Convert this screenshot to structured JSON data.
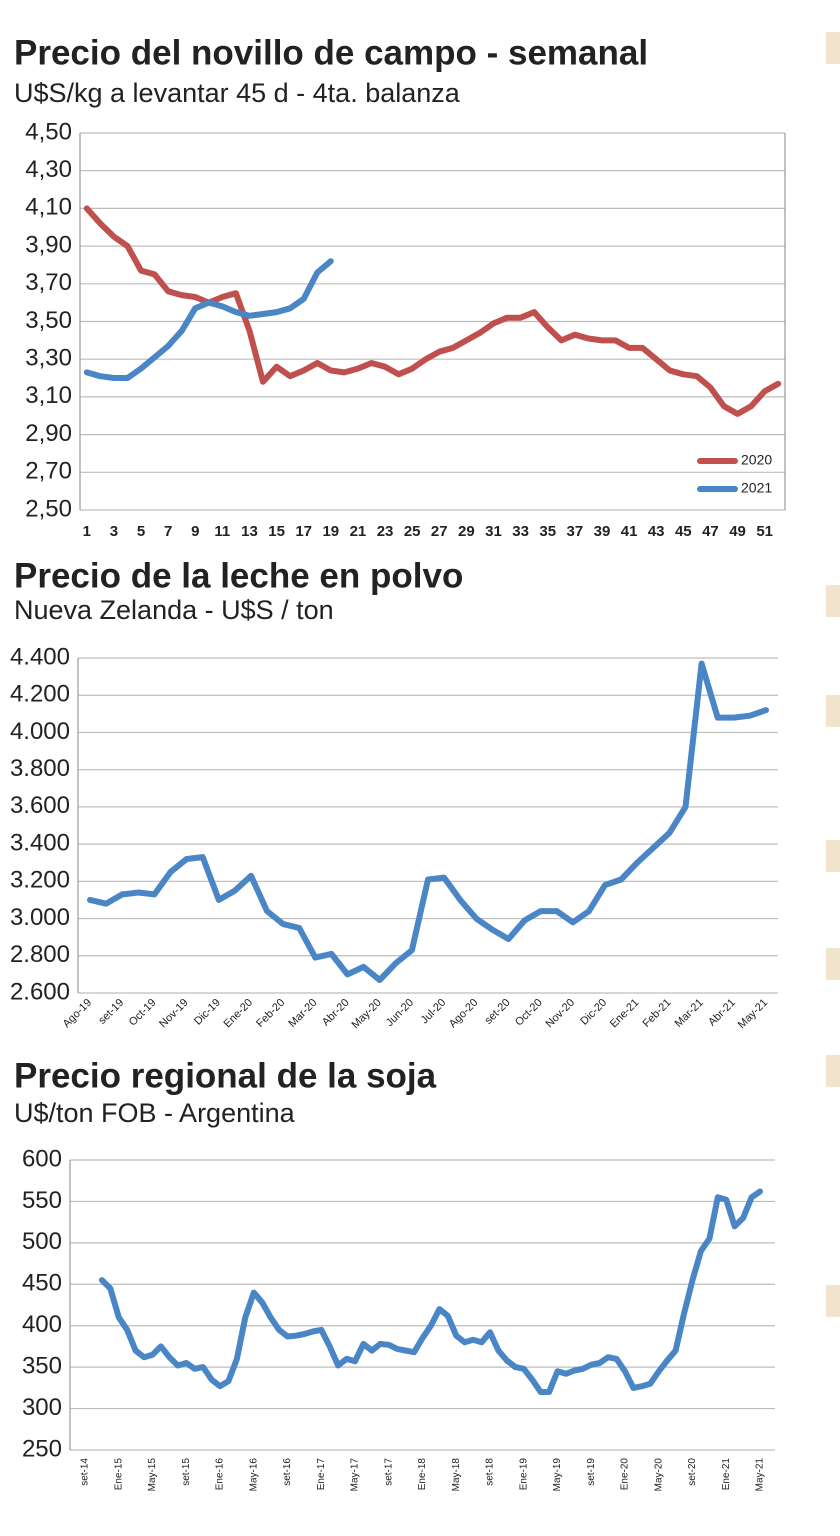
{
  "chart_data": [
    {
      "type": "line",
      "title": "Precio del novillo de campo - semanal",
      "subtitle": "U$S/kg a levantar 45 d - 4ta. balanza",
      "x": [
        1,
        2,
        3,
        4,
        5,
        6,
        7,
        8,
        9,
        10,
        11,
        12,
        13,
        14,
        15,
        16,
        17,
        18,
        19,
        20,
        21,
        22,
        23,
        24,
        25,
        26,
        27,
        28,
        29,
        30,
        31,
        32,
        33,
        34,
        35,
        36,
        37,
        38,
        39,
        40,
        41,
        42,
        43,
        44,
        45,
        46,
        47,
        48,
        49,
        50,
        51,
        52
      ],
      "xlim": [
        0.5,
        52.5
      ],
      "xticks": [
        1,
        3,
        5,
        7,
        9,
        11,
        13,
        15,
        17,
        19,
        21,
        23,
        25,
        27,
        29,
        31,
        33,
        35,
        37,
        39,
        41,
        43,
        45,
        47,
        49,
        51
      ],
      "ylim": [
        2.5,
        4.5
      ],
      "yticks": [
        {
          "value": 2.5,
          "label": "2,50"
        },
        {
          "value": 2.7,
          "label": "2,70"
        },
        {
          "value": 2.9,
          "label": "2,90"
        },
        {
          "value": 3.1,
          "label": "3,10"
        },
        {
          "value": 3.3,
          "label": "3,30"
        },
        {
          "value": 3.5,
          "label": "3,50"
        },
        {
          "value": 3.7,
          "label": "3,70"
        },
        {
          "value": 3.9,
          "label": "3,90"
        },
        {
          "value": 4.1,
          "label": "4,10"
        },
        {
          "value": 4.3,
          "label": "4,30"
        },
        {
          "value": 4.5,
          "label": "4,50"
        }
      ],
      "grid": true,
      "legend": "lower right",
      "series": [
        {
          "name": "2020",
          "color": "#c0504d",
          "values": [
            4.1,
            4.02,
            3.95,
            3.9,
            3.77,
            3.75,
            3.66,
            3.64,
            3.63,
            3.6,
            3.63,
            3.65,
            3.45,
            3.18,
            3.26,
            3.21,
            3.24,
            3.28,
            3.24,
            3.23,
            3.25,
            3.28,
            3.26,
            3.22,
            3.25,
            3.3,
            3.34,
            3.36,
            3.4,
            3.44,
            3.49,
            3.52,
            3.52,
            3.55,
            3.47,
            3.4,
            3.43,
            3.41,
            3.4,
            3.4,
            3.36,
            3.36,
            3.3,
            3.24,
            3.22,
            3.21,
            3.15,
            3.05,
            3.01,
            3.05,
            3.13,
            3.17
          ]
        },
        {
          "name": "2021",
          "color": "#4a86c5",
          "values": [
            3.23,
            3.21,
            3.2,
            3.2,
            3.25,
            3.31,
            3.37,
            3.45,
            3.57,
            3.6,
            3.58,
            3.55,
            3.53,
            3.54,
            3.55,
            3.57,
            3.62,
            3.76,
            3.82,
            null,
            null,
            null,
            null,
            null,
            null,
            null,
            null,
            null,
            null,
            null,
            null,
            null,
            null,
            null,
            null,
            null,
            null,
            null,
            null,
            null,
            null,
            null,
            null,
            null,
            null,
            null,
            null,
            null,
            null,
            null,
            null,
            null
          ]
        }
      ]
    },
    {
      "type": "line",
      "title": "Precio de la leche en polvo",
      "subtitle": "Nueva Zelanda - U$S / ton",
      "categories": [
        "Ago-19",
        null,
        "set-19",
        null,
        "Oct-19",
        null,
        "Nov-19",
        null,
        "Dic-19",
        null,
        "Ene-20",
        null,
        "Feb-20",
        null,
        "Mar-20",
        null,
        "Abr-20",
        null,
        "May-20",
        null,
        "Jun-20",
        null,
        "Jul-20",
        null,
        "Ago-20",
        null,
        "set-20",
        null,
        "Oct-20",
        null,
        "Nov-20",
        null,
        "Dic-20",
        null,
        "Ene-21",
        null,
        "Feb-21",
        null,
        "Mar-21",
        null,
        "Abr-21",
        null,
        "May-21"
      ],
      "values": [
        3100,
        3080,
        3130,
        3140,
        3130,
        3250,
        3320,
        3330,
        3100,
        3150,
        3230,
        3040,
        2970,
        2950,
        2790,
        2810,
        2700,
        2740,
        2670,
        2760,
        2830,
        3210,
        3220,
        3100,
        3000,
        2940,
        2890,
        2990,
        3040,
        3040,
        2980,
        3040,
        3180,
        3210,
        3300,
        3380,
        3460,
        3600,
        4370,
        4080,
        4080,
        4090,
        4120
      ],
      "color": "#4a86c5",
      "ylim": [
        2600,
        4400
      ],
      "yticks": [
        {
          "value": 2600,
          "label": "2.600"
        },
        {
          "value": 2800,
          "label": "2.800"
        },
        {
          "value": 3000,
          "label": "3.000"
        },
        {
          "value": 3200,
          "label": "3.200"
        },
        {
          "value": 3400,
          "label": "3.400"
        },
        {
          "value": 3600,
          "label": "3.600"
        },
        {
          "value": 3800,
          "label": "3.800"
        },
        {
          "value": 4000,
          "label": "4.000"
        },
        {
          "value": 4200,
          "label": "4.200"
        },
        {
          "value": 4400,
          "label": "4.400"
        }
      ],
      "grid": true
    },
    {
      "type": "line",
      "title": "Precio regional de la soja",
      "subtitle": "U$/ton FOB - Argentina",
      "categories": [
        "set-14",
        null,
        null,
        null,
        "Ene-15",
        null,
        null,
        null,
        "May-15",
        null,
        null,
        null,
        "set-15",
        null,
        null,
        null,
        "Ene-16",
        null,
        null,
        null,
        "May-16",
        null,
        null,
        null,
        "set-16",
        null,
        null,
        null,
        "Ene-17",
        null,
        null,
        null,
        "May-17",
        null,
        null,
        null,
        "set-17",
        null,
        null,
        null,
        "Ene-18",
        null,
        null,
        null,
        "May-18",
        null,
        null,
        null,
        "set-18",
        null,
        null,
        null,
        "Ene-19",
        null,
        null,
        null,
        "May-19",
        null,
        null,
        null,
        "set-19",
        null,
        null,
        null,
        "Ene-20",
        null,
        null,
        null,
        "May-20",
        null,
        null,
        null,
        "set-20",
        null,
        null,
        null,
        "Ene-21",
        null,
        null,
        null,
        "May-21"
      ],
      "values": [
        null,
        null,
        455,
        445,
        410,
        395,
        370,
        362,
        365,
        375,
        362,
        352,
        355,
        348,
        350,
        335,
        327,
        333,
        360,
        410,
        440,
        428,
        410,
        395,
        387,
        388,
        390,
        393,
        395,
        375,
        352,
        360,
        357,
        378,
        370,
        378,
        377,
        372,
        370,
        368,
        385,
        400,
        420,
        412,
        388,
        380,
        383,
        380,
        392,
        370,
        358,
        350,
        348,
        335,
        320,
        320,
        345,
        342,
        346,
        348,
        353,
        355,
        362,
        360,
        345,
        325,
        327,
        330,
        345,
        358,
        370,
        415,
        455,
        490,
        505,
        555,
        552,
        520,
        530,
        555,
        562
      ],
      "color": "#4a86c5",
      "ylim": [
        250,
        600
      ],
      "yticks": [
        250,
        300,
        350,
        400,
        450,
        500,
        550,
        600
      ],
      "grid": true
    }
  ]
}
